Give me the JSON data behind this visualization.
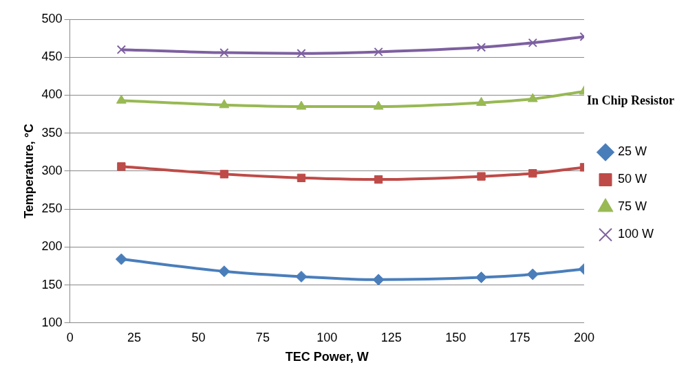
{
  "chart_data": {
    "type": "line",
    "xlabel": "TEC Power, W",
    "ylabel": "Temperature, °C",
    "legend_title": "In Chip Resistor",
    "legend": "right",
    "grid": "y",
    "xlim": [
      0,
      200
    ],
    "xticks": [
      0,
      25,
      50,
      75,
      100,
      125,
      150,
      175,
      200
    ],
    "ylim": [
      100,
      500
    ],
    "yticks": [
      100,
      150,
      200,
      250,
      300,
      350,
      400,
      450,
      500
    ],
    "x": [
      20,
      60,
      90,
      120,
      160,
      180,
      200
    ],
    "series": [
      {
        "name": "25 W",
        "color": "#4a7ebb",
        "marker": "diamond",
        "values": [
          184,
          168,
          161,
          157,
          160,
          164,
          171
        ]
      },
      {
        "name": "50 W",
        "color": "#be4b48",
        "marker": "square",
        "values": [
          306,
          296,
          291,
          289,
          293,
          297,
          305
        ]
      },
      {
        "name": "75 W",
        "color": "#98b954",
        "marker": "triangle",
        "values": [
          393,
          387,
          385,
          385,
          390,
          395,
          405
        ]
      },
      {
        "name": "100 W",
        "color": "#7d60a0",
        "marker": "cross",
        "values": [
          460,
          456,
          455,
          457,
          463,
          469,
          477
        ]
      }
    ]
  }
}
